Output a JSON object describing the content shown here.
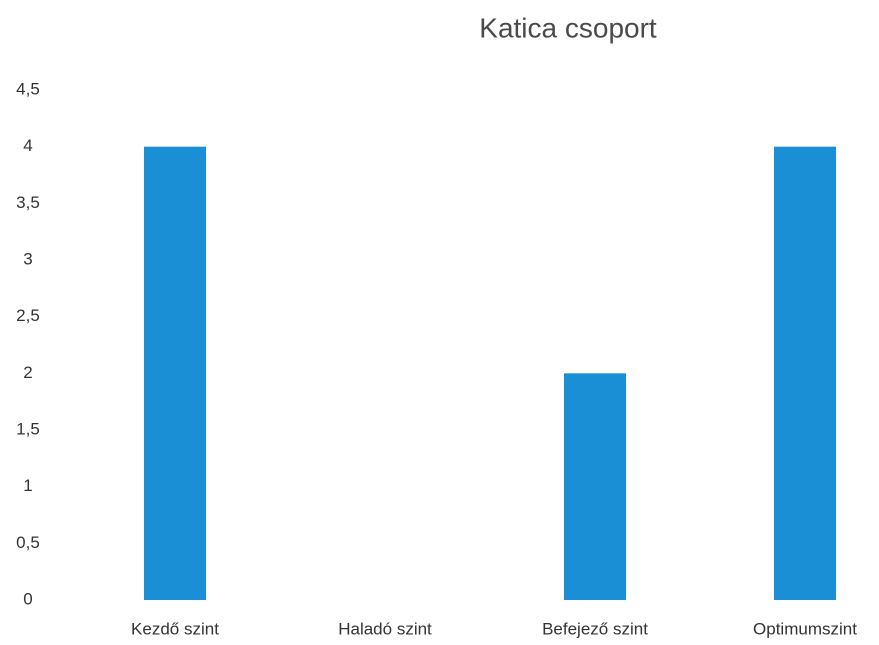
{
  "chart_data": {
    "type": "bar",
    "title": "Katica csoport",
    "categories": [
      "Kezdő szint",
      "Haladó szint",
      "Befejező szint",
      "Optimumszint"
    ],
    "values": [
      4,
      0,
      2,
      4
    ],
    "color": "#1a8fd6",
    "ylim": [
      0,
      4.5
    ],
    "yticks": [
      0,
      {
        "value": 0.5,
        "label": "0,5"
      },
      1,
      {
        "value": 1.5,
        "label": "1,5"
      },
      2,
      {
        "value": 2.5,
        "label": "2,5"
      },
      3,
      {
        "value": 3.5,
        "label": "3,5"
      },
      4,
      {
        "value": 4.5,
        "label": "4,5"
      }
    ],
    "grid": false
  }
}
